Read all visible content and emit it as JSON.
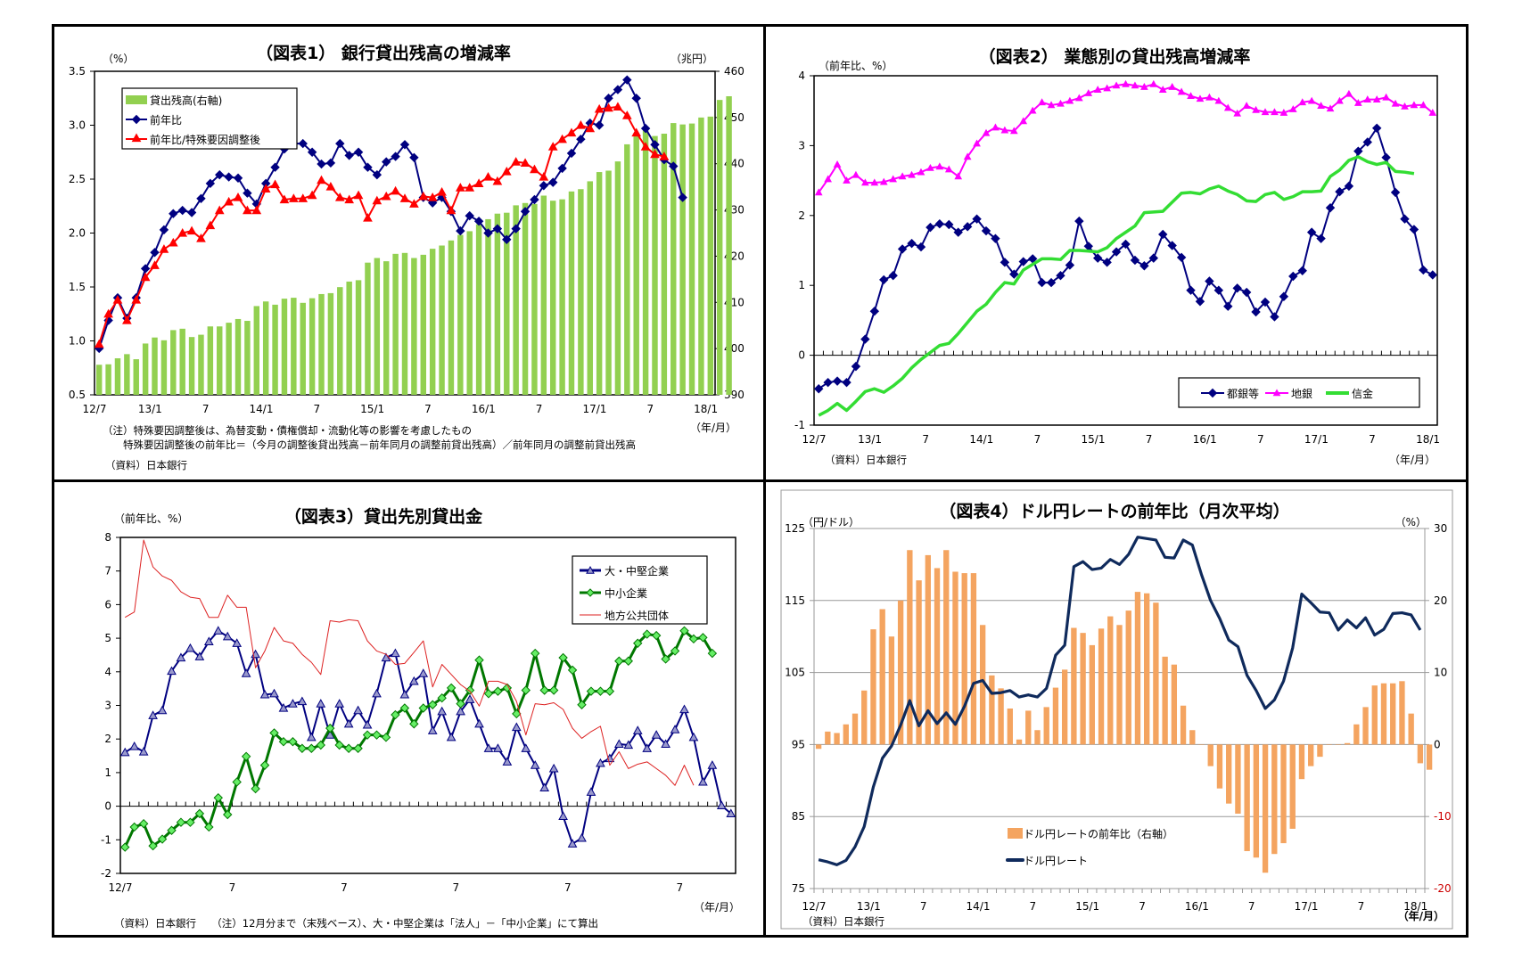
{
  "charts": {
    "c1": {
      "title": "（図表1） 銀行貸出残高の増減率",
      "left_unit": "（%）",
      "right_unit": "（兆円）",
      "x_unit": "（年/月）",
      "note1": "（注）特殊要因調整後は、為替変動・債権償却・流動化等の影響を考慮したもの",
      "note2": "特殊要因調整後の前年比＝（今月の調整後貸出残高－前年同月の調整前貸出残高）／前年同月の調整前貸出残高",
      "source": "（資料）日本銀行"
    },
    "c2": {
      "title": "（図表2） 業態別の貸出残高増減率",
      "left_unit": "（前年比、%）",
      "x_unit": "（年/月）",
      "source": "（資料）日本銀行"
    },
    "c3": {
      "title": "（図表3）貸出先別貸出金",
      "left_unit": "（前年比、%）",
      "x_unit": "（年/月）",
      "source": "（資料）日本銀行　　（注）12月分まで（末残ベース）、大・中堅企業は「法人」－「中小企業」にて算出"
    },
    "c4": {
      "title": "（図表4）ドル円レートの前年比（月次平均）",
      "left_unit": "（円/ドル）",
      "right_unit": "（%）",
      "x_unit": "（年/月）",
      "source": "（資料）日本銀行"
    }
  },
  "chart_data": [
    {
      "type": "bar+line",
      "title": "（図表1） 銀行貸出残高の増減率",
      "x_ticks": [
        "12/7",
        "13/1",
        "7",
        "14/1",
        "7",
        "15/1",
        "7",
        "16/1",
        "7",
        "17/1",
        "7",
        "18/1"
      ],
      "ylim_left": [
        0.5,
        3.5
      ],
      "yticks_left": [
        "0.5",
        "1.0",
        "1.5",
        "2.0",
        "2.5",
        "3.0",
        "3.5"
      ],
      "ylim_right": [
        390,
        460
      ],
      "yticks_right": [
        "390",
        "400",
        "410",
        "420",
        "430",
        "440",
        "450",
        "460"
      ],
      "legend": "top-left",
      "series": [
        {
          "name": "貸出残高(右軸)",
          "axis": "right",
          "kind": "bar",
          "color": "#92d050",
          "values": [
            396.5,
            396.6,
            397.9,
            398.8,
            397.7,
            401.1,
            402.4,
            401.8,
            404.0,
            404.3,
            402.5,
            403.0,
            404.8,
            404.8,
            405.6,
            406.4,
            406.0,
            409.2,
            410.2,
            409.5,
            410.8,
            411.0,
            409.9,
            410.9,
            411.8,
            412.0,
            413.3,
            414.5,
            414.8,
            418.6,
            419.6,
            418.9,
            420.5,
            420.7,
            419.6,
            420.3,
            421.6,
            422.3,
            423.4,
            424.6,
            425.4,
            426.9,
            428.0,
            429.2,
            429.4,
            431.0,
            431.5,
            431.3,
            433.1,
            432.0,
            432.3,
            434.0,
            434.5,
            436.2,
            438.2,
            438.5,
            440.5,
            444.2,
            446.1,
            447.5,
            446.0,
            446.5,
            448.8,
            448.5,
            448.7,
            450.0,
            450.2,
            453.8,
            454.6
          ]
        },
        {
          "name": "前年比",
          "axis": "left",
          "kind": "line",
          "color": "#000080",
          "marker": "diamond",
          "values": [
            0.93,
            1.19,
            1.4,
            1.21,
            1.4,
            1.67,
            1.82,
            2.03,
            2.18,
            2.21,
            2.19,
            2.32,
            2.46,
            2.54,
            2.52,
            2.51,
            2.37,
            2.27,
            2.46,
            2.61,
            2.78,
            2.83,
            2.83,
            2.75,
            2.64,
            2.65,
            2.83,
            2.72,
            2.75,
            2.61,
            2.54,
            2.66,
            2.71,
            2.82,
            2.7,
            2.33,
            2.28,
            2.33,
            2.2,
            2.02,
            2.16,
            2.11,
            2.0,
            2.04,
            1.94,
            2.04,
            2.2,
            2.31,
            2.44,
            2.47,
            2.6,
            2.74,
            2.87,
            3.02,
            3.0,
            3.25,
            3.33,
            3.42,
            3.25,
            2.97,
            2.82,
            2.68,
            2.62,
            2.33
          ]
        },
        {
          "name": "前年比/特殊要因調整後",
          "axis": "left",
          "kind": "line",
          "color": "#ff0000",
          "marker": "triangle",
          "values": [
            0.97,
            1.25,
            1.38,
            1.19,
            1.38,
            1.59,
            1.7,
            1.85,
            1.91,
            2.0,
            2.02,
            1.95,
            2.07,
            2.21,
            2.29,
            2.33,
            2.21,
            2.21,
            2.41,
            2.45,
            2.31,
            2.32,
            2.32,
            2.35,
            2.49,
            2.43,
            2.33,
            2.31,
            2.35,
            2.14,
            2.3,
            2.34,
            2.39,
            2.32,
            2.27,
            2.34,
            2.33,
            2.38,
            2.21,
            2.42,
            2.42,
            2.46,
            2.52,
            2.48,
            2.57,
            2.66,
            2.65,
            2.59,
            2.52,
            2.8,
            2.87,
            2.93,
            3.0,
            2.97,
            3.15,
            3.16,
            3.17,
            3.09,
            2.93,
            2.8,
            2.73,
            2.71
          ]
        }
      ]
    },
    {
      "type": "line",
      "title": "（図表2） 業態別の貸出残高増減率",
      "x_ticks": [
        "12/7",
        "13/1",
        "7",
        "14/1",
        "7",
        "15/1",
        "7",
        "16/1",
        "7",
        "17/1",
        "7",
        "18/1"
      ],
      "ylim": [
        -1,
        4
      ],
      "yticks": [
        "-1",
        "0",
        "1",
        "2",
        "3",
        "4"
      ],
      "legend": "bottom-right",
      "series": [
        {
          "name": "都銀等",
          "color": "#000080",
          "marker": "diamond",
          "values": [
            -0.48,
            -0.39,
            -0.37,
            -0.39,
            -0.16,
            0.23,
            0.63,
            1.08,
            1.14,
            1.52,
            1.6,
            1.55,
            1.83,
            1.88,
            1.87,
            1.76,
            1.84,
            1.95,
            1.78,
            1.67,
            1.33,
            1.16,
            1.34,
            1.38,
            1.04,
            1.04,
            1.14,
            1.29,
            1.92,
            1.56,
            1.39,
            1.33,
            1.48,
            1.59,
            1.36,
            1.28,
            1.39,
            1.73,
            1.57,
            1.4,
            0.93,
            0.77,
            1.06,
            0.93,
            0.7,
            0.96,
            0.9,
            0.62,
            0.76,
            0.55,
            0.84,
            1.13,
            1.21,
            1.76,
            1.67,
            2.11,
            2.34,
            2.42,
            2.92,
            3.05,
            3.25,
            2.83,
            2.33,
            1.95,
            1.8,
            1.22,
            1.15
          ]
        },
        {
          "name": "地銀",
          "color": "#ff00ff",
          "marker": "triangle",
          "values": [
            2.33,
            2.52,
            2.73,
            2.5,
            2.58,
            2.47,
            2.47,
            2.48,
            2.52,
            2.56,
            2.58,
            2.62,
            2.68,
            2.7,
            2.66,
            2.56,
            2.84,
            3.03,
            3.18,
            3.26,
            3.22,
            3.21,
            3.35,
            3.5,
            3.62,
            3.58,
            3.6,
            3.64,
            3.68,
            3.75,
            3.8,
            3.82,
            3.86,
            3.88,
            3.86,
            3.84,
            3.88,
            3.8,
            3.84,
            3.77,
            3.71,
            3.67,
            3.69,
            3.64,
            3.54,
            3.46,
            3.57,
            3.51,
            3.48,
            3.48,
            3.47,
            3.52,
            3.62,
            3.64,
            3.57,
            3.53,
            3.64,
            3.74,
            3.61,
            3.66,
            3.66,
            3.69,
            3.6,
            3.56,
            3.58,
            3.58,
            3.47
          ]
        },
        {
          "name": "信金",
          "color": "#33dd33",
          "marker": "none",
          "values": [
            -0.86,
            -0.79,
            -0.69,
            -0.79,
            -0.66,
            -0.52,
            -0.48,
            -0.53,
            -0.44,
            -0.33,
            -0.18,
            -0.06,
            0.04,
            0.14,
            0.17,
            0.31,
            0.47,
            0.63,
            0.73,
            0.9,
            1.04,
            1.02,
            1.22,
            1.3,
            1.38,
            1.38,
            1.37,
            1.5,
            1.5,
            1.49,
            1.48,
            1.54,
            1.67,
            1.76,
            1.85,
            2.04,
            2.05,
            2.06,
            2.19,
            2.32,
            2.33,
            2.31,
            2.38,
            2.42,
            2.35,
            2.3,
            2.21,
            2.2,
            2.3,
            2.33,
            2.23,
            2.27,
            2.34,
            2.34,
            2.35,
            2.56,
            2.65,
            2.79,
            2.84,
            2.77,
            2.73,
            2.76,
            2.63,
            2.62,
            2.6
          ]
        }
      ]
    },
    {
      "type": "line",
      "title": "（図表3）貸出先別貸出金",
      "x_ticks": [
        "12/7",
        "7",
        "7",
        "7",
        "7",
        "7"
      ],
      "ylim": [
        -2,
        8
      ],
      "yticks": [
        "-2",
        "-1",
        "0",
        "1",
        "2",
        "3",
        "4",
        "5",
        "6",
        "7",
        "8"
      ],
      "legend": "top-right",
      "series": [
        {
          "name": "大・中堅企業",
          "color": "#000080",
          "marker": "triangle",
          "marker_fill": "#9999cc",
          "values": [
            1.6,
            1.78,
            1.62,
            2.7,
            2.85,
            4.02,
            4.42,
            4.7,
            4.45,
            4.9,
            5.22,
            5.05,
            4.85,
            3.95,
            4.52,
            3.32,
            3.35,
            2.92,
            3.05,
            3.12,
            2.05,
            3.05,
            2.12,
            3.05,
            2.45,
            2.85,
            2.42,
            3.35,
            4.42,
            4.55,
            3.32,
            3.72,
            3.95,
            2.25,
            2.82,
            2.05,
            2.82,
            3.18,
            2.45,
            1.72,
            1.72,
            1.32,
            2.35,
            1.72,
            1.22,
            0.55,
            1.12,
            -0.3,
            -1.12,
            -0.95,
            0.42,
            1.28,
            1.42,
            1.85,
            1.82,
            2.25,
            1.72,
            2.12,
            1.85,
            2.28,
            2.88,
            2.05,
            0.72,
            1.22,
            0.02,
            -0.22
          ]
        },
        {
          "name": "中小企業",
          "color": "#007700",
          "marker": "diamond",
          "marker_fill": "#66ee66",
          "values": [
            -1.22,
            -0.62,
            -0.52,
            -1.18,
            -0.98,
            -0.72,
            -0.48,
            -0.48,
            -0.22,
            -0.62,
            0.25,
            -0.25,
            0.72,
            1.48,
            0.52,
            1.22,
            2.18,
            1.92,
            1.92,
            1.72,
            1.72,
            1.82,
            2.32,
            1.82,
            1.72,
            1.72,
            2.12,
            2.12,
            2.05,
            2.72,
            2.92,
            2.45,
            2.92,
            3.02,
            3.22,
            3.52,
            3.05,
            3.45,
            4.35,
            3.35,
            3.42,
            3.52,
            2.75,
            3.45,
            4.55,
            3.45,
            3.45,
            4.42,
            4.05,
            3.02,
            3.42,
            3.42,
            3.42,
            4.32,
            4.32,
            4.85,
            5.12,
            5.08,
            4.38,
            4.62,
            5.22,
            4.98,
            5.02,
            4.55
          ]
        },
        {
          "name": "地方公共団体",
          "color": "#dd2222",
          "marker": "none",
          "values": [
            5.62,
            5.78,
            7.92,
            7.12,
            6.85,
            6.72,
            6.38,
            6.22,
            6.18,
            5.62,
            5.62,
            6.28,
            5.92,
            5.92,
            4.12,
            4.62,
            5.32,
            4.92,
            4.85,
            4.52,
            4.28,
            3.92,
            5.52,
            5.48,
            5.55,
            5.52,
            4.92,
            4.62,
            4.52,
            4.22,
            4.25,
            4.58,
            4.92,
            3.55,
            4.22,
            3.92,
            3.62,
            3.42,
            2.98,
            3.72,
            3.72,
            3.62,
            3.12,
            2.12,
            3.05,
            3.02,
            3.08,
            2.88,
            2.32,
            2.02,
            2.22,
            2.38,
            1.22,
            1.62,
            1.12,
            1.25,
            1.32,
            1.12,
            0.92,
            0.62,
            1.22,
            0.62
          ]
        }
      ]
    },
    {
      "type": "bar+line",
      "title": "（図表4）ドル円レートの前年比（月次平均）",
      "x_ticks": [
        "12/7",
        "13/1",
        "7",
        "14/1",
        "7",
        "15/1",
        "7",
        "16/1",
        "7",
        "17/1",
        "7",
        "18/1"
      ],
      "ylim_left": [
        75,
        125
      ],
      "yticks_left": [
        "75",
        "85",
        "95",
        "105",
        "115",
        "125"
      ],
      "ylim_right": [
        -20,
        30
      ],
      "yticks_right": [
        "-20",
        "-10",
        "0",
        "10",
        "20",
        "30"
      ],
      "legend": "bottom-center",
      "series": [
        {
          "name": "ドル円レートの前年比（右軸）",
          "axis": "right",
          "kind": "bar",
          "color": "#f4a460",
          "values": [
            -0.6,
            1.8,
            1.6,
            2.8,
            4.3,
            7.5,
            16.0,
            18.8,
            15.0,
            20.0,
            27.0,
            22.8,
            26.3,
            24.5,
            27.0,
            24.0,
            23.8,
            23.8,
            16.6,
            9.6,
            7.8,
            5.0,
            0.7,
            4.7,
            2.0,
            5.2,
            7.9,
            10.4,
            16.2,
            15.5,
            13.8,
            16.1,
            17.8,
            16.6,
            18.6,
            21.2,
            21.0,
            19.7,
            12.2,
            11.1,
            5.4,
            2.0,
            0,
            -3.0,
            -6.1,
            -8.2,
            -9.6,
            -14.8,
            -15.7,
            -17.8,
            -15.2,
            -13.7,
            -11.7,
            -4.8,
            -3.0,
            -1.7,
            0,
            0,
            0.2,
            2.8,
            5.2,
            8.2,
            8.5,
            8.5,
            8.8,
            4.3,
            -2.6,
            -3.5
          ]
        },
        {
          "name": "ドル円レート",
          "axis": "left",
          "kind": "line",
          "color": "#0f2a5c",
          "marker": "none",
          "values": [
            79.0,
            78.7,
            78.3,
            78.9,
            80.8,
            83.6,
            89.1,
            93.1,
            94.8,
            97.7,
            101.1,
            97.6,
            99.7,
            97.9,
            99.4,
            97.8,
            100.3,
            103.5,
            103.9,
            102.1,
            102.2,
            102.5,
            101.6,
            101.9,
            101.6,
            102.8,
            107.4,
            108.8,
            119.7,
            120.4,
            119.3,
            119.5,
            120.7,
            120.0,
            121.4,
            123.8,
            123.6,
            123.4,
            121.0,
            120.9,
            123.4,
            122.7,
            118.6,
            115.0,
            112.5,
            109.5,
            108.6,
            104.6,
            102.5,
            100.0,
            101.2,
            103.8,
            108.4,
            115.9,
            114.7,
            113.4,
            113.3,
            110.9,
            112.3,
            111.2,
            112.6,
            110.2,
            111.0,
            113.2,
            113.3,
            113.0,
            110.9
          ]
        }
      ]
    }
  ]
}
